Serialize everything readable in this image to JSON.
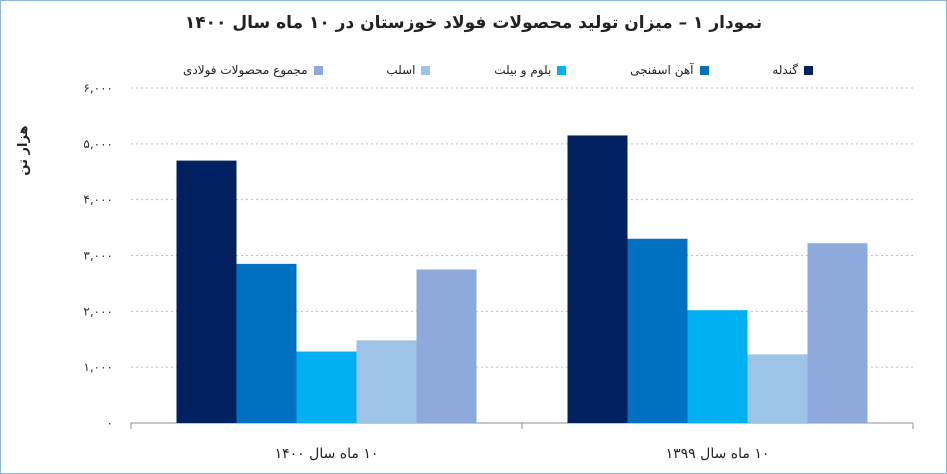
{
  "chart_data": {
    "type": "bar",
    "title": "نمودار ۱ – میزان تولید محصولات فولاد خوزستان در ۱۰ ماه سال ۱۴۰۰",
    "ylabel": "هزار تن",
    "xlabel": "",
    "ylim": [
      0,
      6000
    ],
    "yticks": [
      0,
      1000,
      2000,
      3000,
      4000,
      5000,
      6000
    ],
    "ytick_labels": [
      "۰",
      "۱,۰۰۰",
      "۲,۰۰۰",
      "۳,۰۰۰",
      "۴,۰۰۰",
      "۵,۰۰۰",
      "۶,۰۰۰"
    ],
    "categories": [
      "۱۰ ماه سال ۱۴۰۰",
      "۱۰ ماه سال ۱۳۹۹"
    ],
    "series": [
      {
        "name": "گندله",
        "color": "#002060",
        "values": [
          4700,
          5150
        ]
      },
      {
        "name": "آهن اسفنجی",
        "color": "#0070C0",
        "values": [
          2850,
          3300
        ]
      },
      {
        "name": "بلوم و بیلت",
        "color": "#00B0F0",
        "values": [
          1280,
          2020
        ]
      },
      {
        "name": "اسلب",
        "color": "#9DC3E6",
        "values": [
          1480,
          1230
        ]
      },
      {
        "name": "مجموع محصولات فولادی",
        "color": "#8EA9DB",
        "values": [
          2750,
          3220
        ]
      }
    ],
    "grid": true,
    "legend_position": "top"
  }
}
